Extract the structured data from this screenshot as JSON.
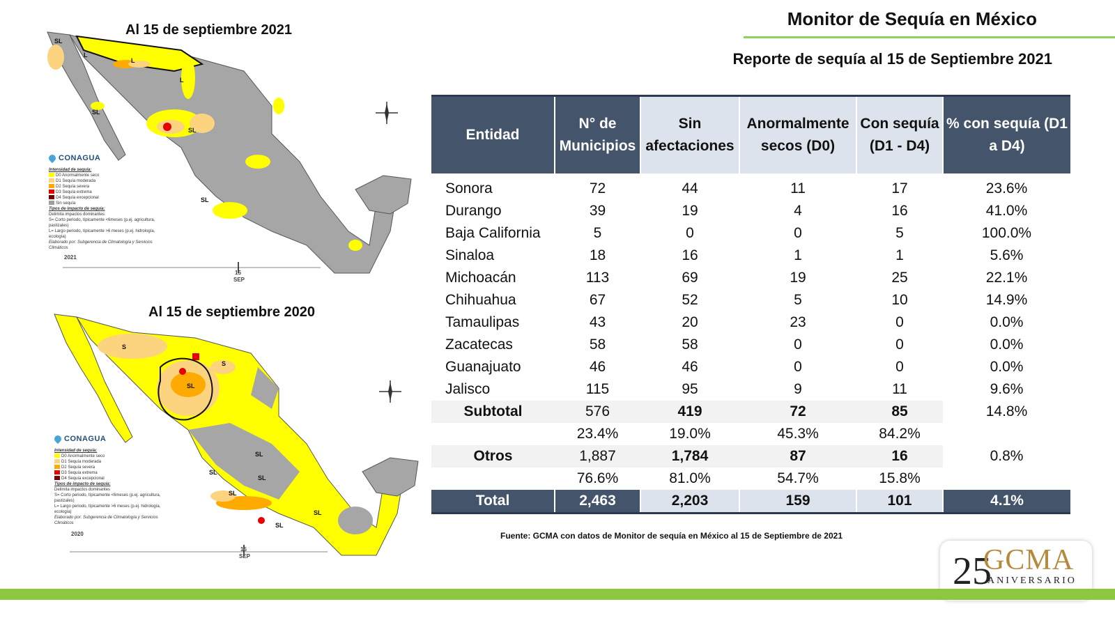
{
  "header": {
    "title": "Monitor de Sequía en México",
    "subtitle": "Reporte de sequía al 15 de Septiembre 2021"
  },
  "maps": [
    {
      "caption": "Al 15 de septiembre 2021",
      "year": "2021",
      "labels": [
        "SL",
        "L",
        "L",
        "SL",
        "SL",
        "SL",
        "L"
      ]
    },
    {
      "caption": "Al 15 de septiembre 2020",
      "year": "2020",
      "labels": [
        "S",
        "S",
        "SL",
        "SL",
        "SL",
        "SL",
        "SL",
        "SL",
        "SL"
      ]
    }
  ],
  "map_legend": {
    "agency": "CONAGUA",
    "intensity_title": "Intensidad de sequía:",
    "items": [
      {
        "label": "D0 Anormalmente seco",
        "color": "#ffff00"
      },
      {
        "label": "D1 Sequía moderada",
        "color": "#fcd37f"
      },
      {
        "label": "D2 Sequía severa",
        "color": "#ffaa00"
      },
      {
        "label": "D3 Sequía extrema",
        "color": "#e60000"
      },
      {
        "label": "D4 Sequía excepcional",
        "color": "#730000"
      },
      {
        "label": "Sin sequía",
        "color": "#9e9e9e"
      }
    ],
    "impact_title": "Tipos de impacto de sequía:",
    "impact_items": [
      "Delimita impactos dominantes",
      "S= Corto periodo, típicamente <6meses (p.ej. agricultura, pastizales)",
      "L= Largo periodo, típicamente >6 meses (p.ej. hidrología, ecología)"
    ],
    "credit": "Elaborado por: Subgerencia de Climatología y Servicios Climáticos",
    "timeline_marker": "15",
    "timeline_month": "SEP"
  },
  "table": {
    "headers": [
      "Entidad",
      "N° de Municipios",
      "Sin afectaciones",
      "Anormalmente secos (D0)",
      "Con sequía (D1 - D4)",
      "% con sequía (D1 a D4)"
    ],
    "rows": [
      [
        "Sonora",
        "72",
        "44",
        "11",
        "17",
        "23.6%"
      ],
      [
        "Durango",
        "39",
        "19",
        "4",
        "16",
        "41.0%"
      ],
      [
        "Baja California",
        "5",
        "0",
        "0",
        "5",
        "100.0%"
      ],
      [
        "Sinaloa",
        "18",
        "16",
        "1",
        "1",
        "5.6%"
      ],
      [
        "Michoacán",
        "113",
        "69",
        "19",
        "25",
        "22.1%"
      ],
      [
        "Chihuahua",
        "67",
        "52",
        "5",
        "10",
        "14.9%"
      ],
      [
        "Tamaulipas",
        "43",
        "20",
        "23",
        "0",
        "0.0%"
      ],
      [
        "Zacatecas",
        "58",
        "58",
        "0",
        "0",
        "0.0%"
      ],
      [
        "Guanajuato",
        "46",
        "46",
        "0",
        "0",
        "0.0%"
      ],
      [
        "Jalisco",
        "115",
        "95",
        "9",
        "11",
        "9.6%"
      ]
    ],
    "subtotal": [
      "Subtotal",
      "576",
      "419",
      "72",
      "85",
      "14.8%"
    ],
    "subtotal_pct": [
      "",
      "23.4%",
      "19.0%",
      "45.3%",
      "84.2%",
      ""
    ],
    "otros": [
      "Otros",
      "1,887",
      "1,784",
      "87",
      "16",
      "0.8%"
    ],
    "otros_pct": [
      "",
      "76.6%",
      "81.0%",
      "54.7%",
      "15.8%",
      ""
    ],
    "total": [
      "Total",
      "2,463",
      "2,203",
      "159",
      "101",
      "4.1%"
    ]
  },
  "source": "Fuente: GCMA con datos de Monitor de sequía en México al 15 de Septiembre de 2021",
  "logo": {
    "number": "25",
    "brand": "GCMA",
    "tagline": "ANIVERSARIO"
  },
  "colors": {
    "header_dark": "#44546a",
    "header_light": "#dce3ec",
    "accent_green": "#8dc63f",
    "logo_gold": "#b48b3c"
  }
}
